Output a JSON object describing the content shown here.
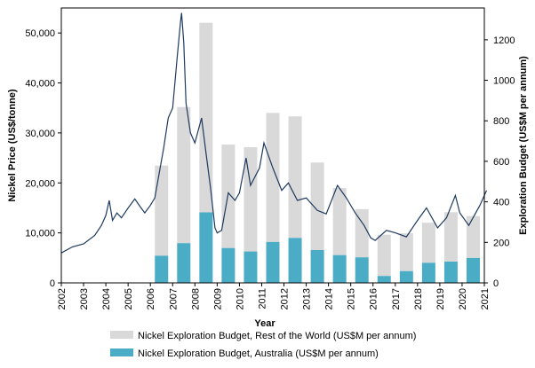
{
  "chart_data": {
    "type": "bar+line",
    "xlabel": "Year",
    "ylabel_left": "Nickel Price (US$/tonne)",
    "ylabel_right": "Exploration Budget (US$M per annum)",
    "ylim_left": [
      0,
      55000
    ],
    "ylim_right": [
      0,
      1357
    ],
    "yticks_left": [
      0,
      10000,
      20000,
      30000,
      40000,
      50000
    ],
    "yticks_left_labels": [
      "0",
      "10,000",
      "20,000",
      "30,000",
      "40,000",
      "50,000"
    ],
    "yticks_right": [
      0,
      200,
      400,
      600,
      800,
      1000,
      1200
    ],
    "yticks_right_labels": [
      "0",
      "200",
      "400",
      "600",
      "800",
      "1000",
      "1200"
    ],
    "xlim": [
      2002,
      2021.1
    ],
    "xticks": [
      "2002",
      "2003",
      "2004",
      "2005",
      "2006",
      "2007",
      "2008",
      "2009",
      "2010",
      "2011",
      "2012",
      "2013",
      "2014",
      "2015",
      "2016",
      "2017",
      "2018",
      "2019",
      "2020",
      "2021"
    ],
    "bar_years": [
      2006,
      2007,
      2008,
      2009,
      2010,
      2011,
      2012,
      2013,
      2014,
      2015,
      2016,
      2017,
      2018,
      2019,
      2020
    ],
    "series": [
      {
        "name": "Nickel Exploration Budget, Australia (US$M per annum)",
        "axis": "right",
        "type": "bar",
        "color": "#4bacc6",
        "values": [
          134,
          196,
          348,
          172,
          155,
          202,
          222,
          162,
          137,
          126,
          34,
          58,
          99,
          105,
          123
        ]
      },
      {
        "name": "Nickel Exploration Budget, Rest of the World (US$M per annum)",
        "axis": "right",
        "type": "bar",
        "stacked": true,
        "color": "#d9d9d9",
        "values": [
          445,
          672,
          936,
          511,
          515,
          637,
          600,
          432,
          331,
          238,
          204,
          187,
          198,
          244,
          207
        ]
      },
      {
        "name": "",
        "axis": "left",
        "type": "line",
        "color": "#1f3a5f",
        "x": [
          2002.0,
          2002.5,
          2003.0,
          2003.5,
          2003.8,
          2004.0,
          2004.15,
          2004.3,
          2004.5,
          2004.7,
          2005.0,
          2005.3,
          2005.5,
          2005.75,
          2006.0,
          2006.2,
          2006.4,
          2006.6,
          2006.8,
          2007.0,
          2007.2,
          2007.35,
          2007.4,
          2007.5,
          2007.6,
          2007.8,
          2008.0,
          2008.3,
          2008.5,
          2008.7,
          2008.9,
          2009.0,
          2009.2,
          2009.5,
          2009.8,
          2010.0,
          2010.3,
          2010.5,
          2010.9,
          2011.1,
          2011.5,
          2011.9,
          2012.2,
          2012.6,
          2013.0,
          2013.5,
          2013.9,
          2014.4,
          2014.8,
          2015.2,
          2015.6,
          2015.9,
          2016.1,
          2016.6,
          2017.0,
          2017.5,
          2018.0,
          2018.4,
          2018.9,
          2019.3,
          2019.7,
          2019.9,
          2020.3,
          2020.8,
          2021.0,
          2021.1
        ],
        "values": [
          6000,
          7200,
          7800,
          9500,
          11500,
          13500,
          16500,
          12500,
          14000,
          13000,
          15000,
          16800,
          15500,
          14000,
          15500,
          17000,
          22000,
          27000,
          33000,
          35000,
          45000,
          52000,
          54000,
          48000,
          36000,
          30000,
          28000,
          33000,
          26000,
          19000,
          11000,
          10000,
          10500,
          18000,
          16500,
          18000,
          25000,
          19500,
          23000,
          28000,
          23000,
          18500,
          20000,
          16500,
          17000,
          14500,
          13800,
          19500,
          17000,
          14000,
          11500,
          9000,
          8500,
          10500,
          10000,
          9200,
          12500,
          15000,
          11000,
          13000,
          17500,
          14000,
          11500,
          15500,
          17500,
          18500
        ]
      }
    ],
    "legend": {
      "placement": "bottom",
      "entries": [
        "Nickel Exploration Budget, Rest of the World (US$M per annum)",
        "Nickel Exploration Budget, Australia (US$M per annum)"
      ]
    }
  }
}
